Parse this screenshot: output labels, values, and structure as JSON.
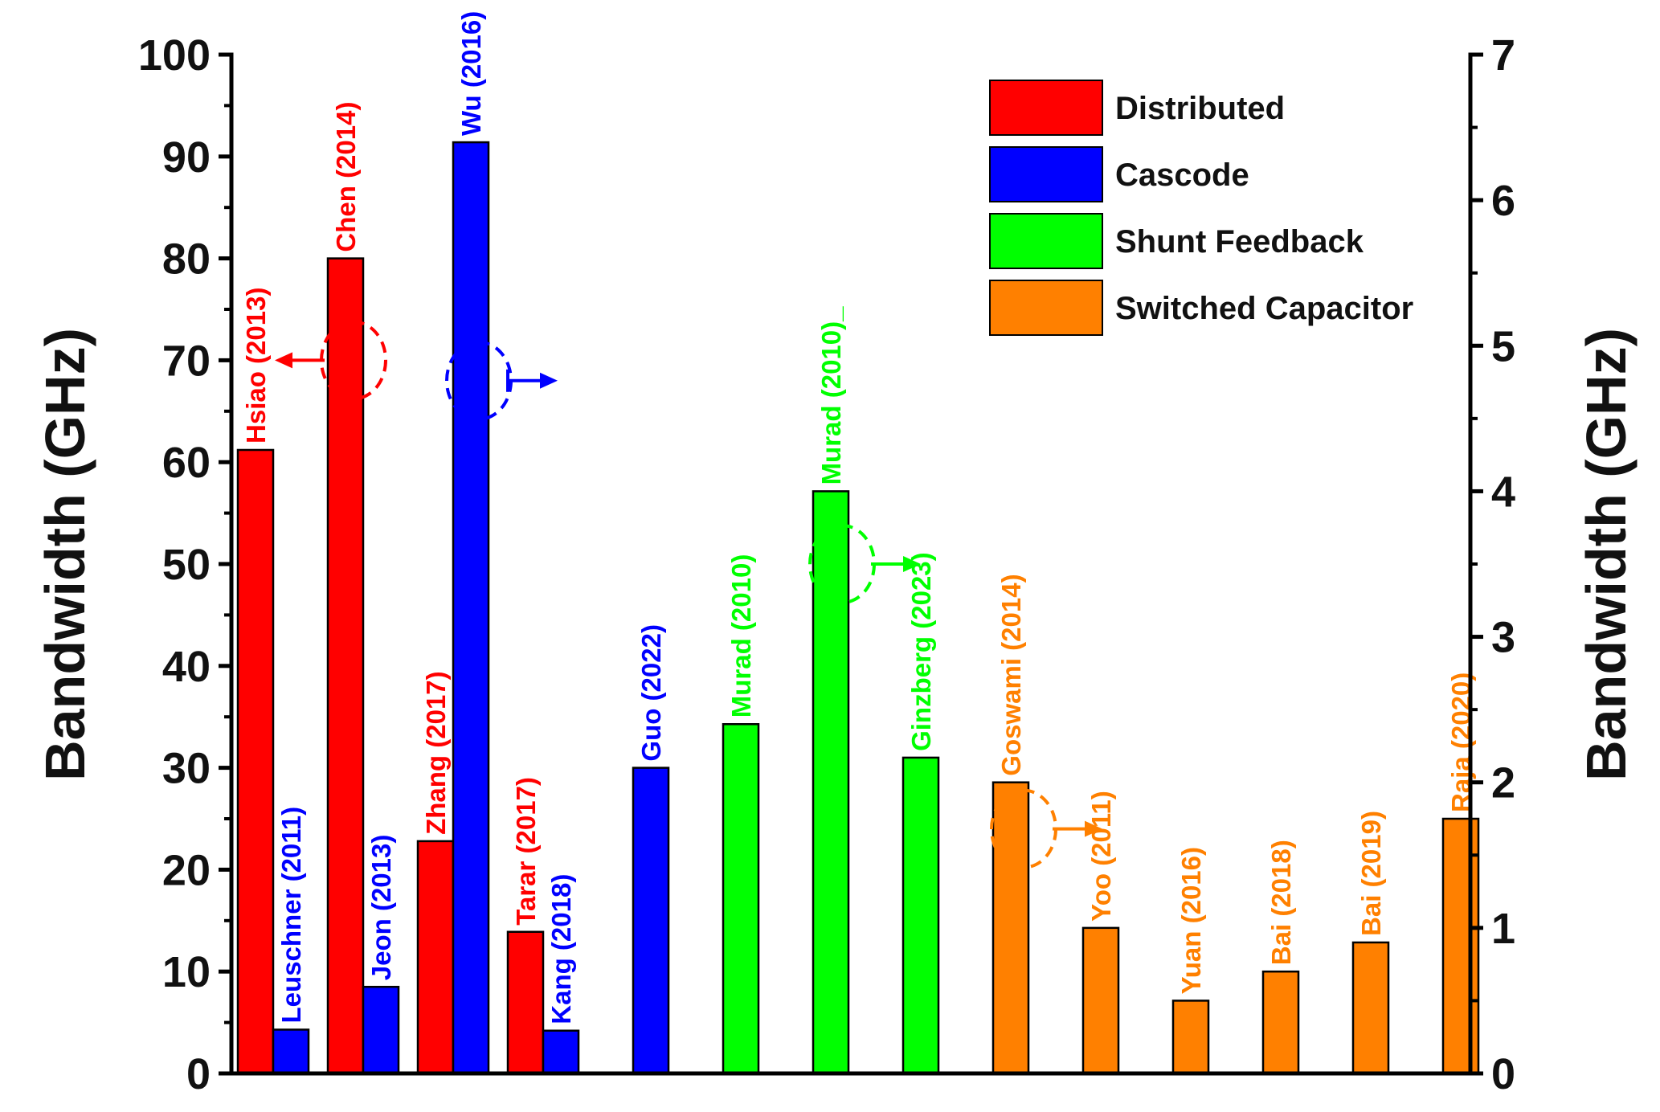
{
  "chart_data": {
    "type": "bar",
    "title": "",
    "xlabel": "",
    "ylabel": "Bandwidth (GHz)",
    "ylabel_right": "Bandwidth (GHz)",
    "ylim": [
      0,
      100
    ],
    "ylim_right": [
      0,
      7
    ],
    "yticks": [
      0,
      10,
      20,
      30,
      40,
      50,
      60,
      70,
      80,
      90,
      100
    ],
    "yticks_right": [
      0,
      1,
      2,
      3,
      4,
      5,
      6,
      7
    ],
    "legend_position": "top-right",
    "series": [
      {
        "name": "Distributed",
        "color": "#ff0000",
        "axis": "left"
      },
      {
        "name": "Cascode",
        "color": "#0000ff",
        "axis": "left"
      },
      {
        "name": "Shunt Feedback",
        "color": "#00ff00",
        "axis": "right"
      },
      {
        "name": "Switched Capacitor",
        "color": "#ff8000",
        "axis": "right"
      }
    ],
    "bars": [
      {
        "label": "Hsiao (2013)",
        "series": "Distributed",
        "axis": "left",
        "value": 61.2,
        "group": 0,
        "slot": 0
      },
      {
        "label": "Leuschner (2011)",
        "series": "Cascode",
        "axis": "left",
        "value": 4.3,
        "group": 0,
        "slot": 1
      },
      {
        "label": "Chen (2014)",
        "series": "Distributed",
        "axis": "left",
        "value": 80.0,
        "group": 1,
        "slot": 0
      },
      {
        "label": "Jeon (2013)",
        "series": "Cascode",
        "axis": "left",
        "value": 8.5,
        "group": 1,
        "slot": 1
      },
      {
        "label": "Zhang (2017)",
        "series": "Distributed",
        "axis": "left",
        "value": 22.8,
        "group": 2,
        "slot": 0
      },
      {
        "label": "Wu (2016)",
        "series": "Cascode",
        "axis": "left",
        "value": 91.4,
        "group": 2,
        "slot": 1
      },
      {
        "label": "Tarar (2017)",
        "series": "Distributed",
        "axis": "left",
        "value": 13.9,
        "group": 3,
        "slot": 0
      },
      {
        "label": "Kang (2018)",
        "series": "Cascode",
        "axis": "left",
        "value": 4.2,
        "group": 3,
        "slot": 1
      },
      {
        "label": "Guo (2022)",
        "series": "Cascode",
        "axis": "left",
        "value": 30.0,
        "group": 4,
        "slot": 1
      },
      {
        "label": "Murad (2010)",
        "series": "Shunt Feedback",
        "axis": "right",
        "value": 2.4,
        "group": 5,
        "slot": 1
      },
      {
        "label": "Murad (2010)_",
        "series": "Shunt Feedback",
        "axis": "right",
        "value": 4.0,
        "group": 6,
        "slot": 1
      },
      {
        "label": "Ginzberg (2023)",
        "series": "Shunt Feedback",
        "axis": "right",
        "value": 2.17,
        "group": 7,
        "slot": 1
      },
      {
        "label": "Goswami (2014)",
        "series": "Switched Capacitor",
        "axis": "right",
        "value": 2.0,
        "group": 8,
        "slot": 1
      },
      {
        "label": "Yoo (2011)",
        "series": "Switched Capacitor",
        "axis": "right",
        "value": 1.0,
        "group": 9,
        "slot": 1
      },
      {
        "label": "Yuan (2016)",
        "series": "Switched Capacitor",
        "axis": "right",
        "value": 0.5,
        "group": 10,
        "slot": 1
      },
      {
        "label": "Bai (2018)",
        "series": "Switched Capacitor",
        "axis": "right",
        "value": 0.7,
        "group": 11,
        "slot": 1
      },
      {
        "label": "Bai (2019)",
        "series": "Switched Capacitor",
        "axis": "right",
        "value": 0.9,
        "group": 12,
        "slot": 1
      },
      {
        "label": "Raja (2020)",
        "series": "Switched Capacitor",
        "axis": "right",
        "value": 1.75,
        "group": 13,
        "slot": 1
      }
    ],
    "annotations": [
      {
        "series": "Distributed",
        "points_to": "left",
        "value": 70
      },
      {
        "series": "Cascode",
        "points_to": "right",
        "value": 68
      },
      {
        "series": "Shunt Feedback",
        "points_to": "right",
        "value": 50
      },
      {
        "series": "Switched Capacitor",
        "points_to": "right",
        "value": 24
      }
    ]
  }
}
